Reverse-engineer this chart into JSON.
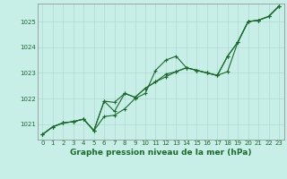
{
  "title": "Graphe pression niveau de la mer (hPa)",
  "bg_color": "#c8eee8",
  "grid_color": "#b0d8d0",
  "line_color": "#1a6b2a",
  "spine_color": "#888888",
  "xlim": [
    -0.5,
    23.5
  ],
  "ylim": [
    1020.4,
    1025.7
  ],
  "xticks": [
    0,
    1,
    2,
    3,
    4,
    5,
    6,
    7,
    8,
    9,
    10,
    11,
    12,
    13,
    14,
    15,
    16,
    17,
    18,
    19,
    20,
    21,
    22,
    23
  ],
  "yticks": [
    1021,
    1022,
    1023,
    1024,
    1025
  ],
  "series": [
    [
      1020.6,
      1020.9,
      1021.05,
      1021.1,
      1021.2,
      1020.75,
      1021.3,
      1021.35,
      1021.6,
      1022.0,
      1022.2,
      1023.1,
      1023.5,
      1023.65,
      1023.2,
      1023.1,
      1023.0,
      1022.9,
      1023.65,
      1024.2,
      1025.0,
      1025.05,
      1025.2,
      1025.6
    ],
    [
      1020.6,
      1020.9,
      1021.05,
      1021.1,
      1021.2,
      1020.75,
      1021.9,
      1021.85,
      1022.2,
      1022.05,
      1022.4,
      1022.65,
      1022.95,
      1023.05,
      1023.2,
      1023.1,
      1023.0,
      1022.9,
      1023.65,
      1024.2,
      1025.0,
      1025.05,
      1025.2,
      1025.6
    ],
    [
      1020.6,
      1020.9,
      1021.05,
      1021.1,
      1021.2,
      1020.75,
      1021.9,
      1021.5,
      1022.2,
      1022.05,
      1022.4,
      1022.65,
      1022.85,
      1023.05,
      1023.2,
      1023.1,
      1023.0,
      1022.9,
      1023.05,
      1024.2,
      1025.0,
      1025.05,
      1025.2,
      1025.6
    ]
  ],
  "marker": "+",
  "markersize": 3,
  "linewidth": 0.8,
  "tick_labelsize": 5.0,
  "xlabel_fontsize": 6.5,
  "figsize": [
    3.2,
    2.0
  ],
  "dpi": 100
}
